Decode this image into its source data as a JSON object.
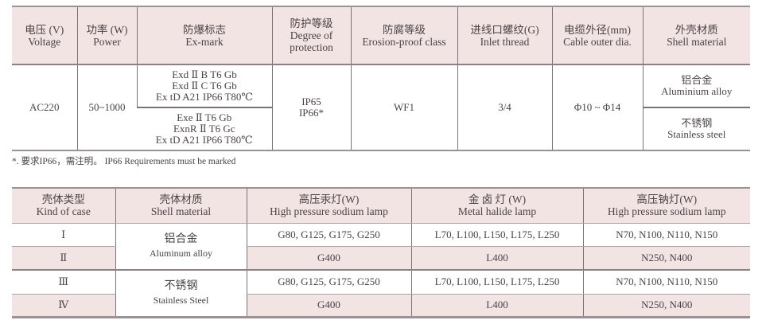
{
  "table1": {
    "headers": [
      {
        "cn": "电压 (V)",
        "en": "Voltage"
      },
      {
        "cn": "功率 (W)",
        "en": "Power"
      },
      {
        "cn": "防爆标志",
        "en": "Ex-mark"
      },
      {
        "cn": "防护等级",
        "en": "Degree of protection"
      },
      {
        "cn": "防腐等级",
        "en": "Erosion-proof class"
      },
      {
        "cn": "进线口螺纹(G)",
        "en": "Inlet thread"
      },
      {
        "cn": "电缆外径(mm)",
        "en": "Cable outer dia."
      },
      {
        "cn": "外壳材质",
        "en": "Shell material"
      }
    ],
    "voltage": "AC220",
    "power": "50~1000",
    "exmark": [
      [
        "Exd Ⅱ B T6 Gb",
        "Exd Ⅱ C T6 Gb",
        "Ex tD A21 IP66 T80℃"
      ],
      [
        "Exe Ⅱ T6 Gb",
        "ExnR Ⅱ T6 Gc",
        "Ex tD A21 IP66 T80℃"
      ]
    ],
    "protection": [
      "IP65",
      "IP66*"
    ],
    "erosion": "WF1",
    "thread": "3/4",
    "cable": "Φ10 ~ Φ14",
    "shell": [
      {
        "cn": "铝合金",
        "en": "Aluminium alloy"
      },
      {
        "cn": "不锈钢",
        "en": "Stainless steel"
      }
    ]
  },
  "note": "*. 要求IP66，需注明。  IP66 Requirements must be marked",
  "table2": {
    "headers": [
      {
        "cn": "壳体类型",
        "en": "Kind of case"
      },
      {
        "cn": "壳体材质",
        "en": "Shell material"
      },
      {
        "cn": "高压汞灯(W)",
        "en": "High pressure sodium lamp"
      },
      {
        "cn": "金 卤 灯 (W)",
        "en": "Metal halide lamp"
      },
      {
        "cn": "高压钠灯(W)",
        "en": "High pressure sodium lamp"
      }
    ],
    "materials": [
      {
        "cn": "铝合金",
        "en": "Aluminum alloy"
      },
      {
        "cn": "不锈钢",
        "en": "Stainless Steel"
      }
    ],
    "rows": [
      {
        "kind": "Ⅰ",
        "mercury": "G80, G125, G175, G250",
        "halide": "L70, L100, L150, L175,  L250",
        "sodium": "N70,  N100,  N110,  N150"
      },
      {
        "kind": "Ⅱ",
        "mercury": "G400",
        "halide": "L400",
        "sodium": "N250,  N400"
      },
      {
        "kind": "Ⅲ",
        "mercury": "G80, G125, G175, G250",
        "halide": "L70, L100, L150, L175,  L250",
        "sodium": "N70,  N100,  N110,  N150"
      },
      {
        "kind": "Ⅳ",
        "mercury": "G400",
        "halide": "L400",
        "sodium": "N250,  N400"
      }
    ]
  }
}
